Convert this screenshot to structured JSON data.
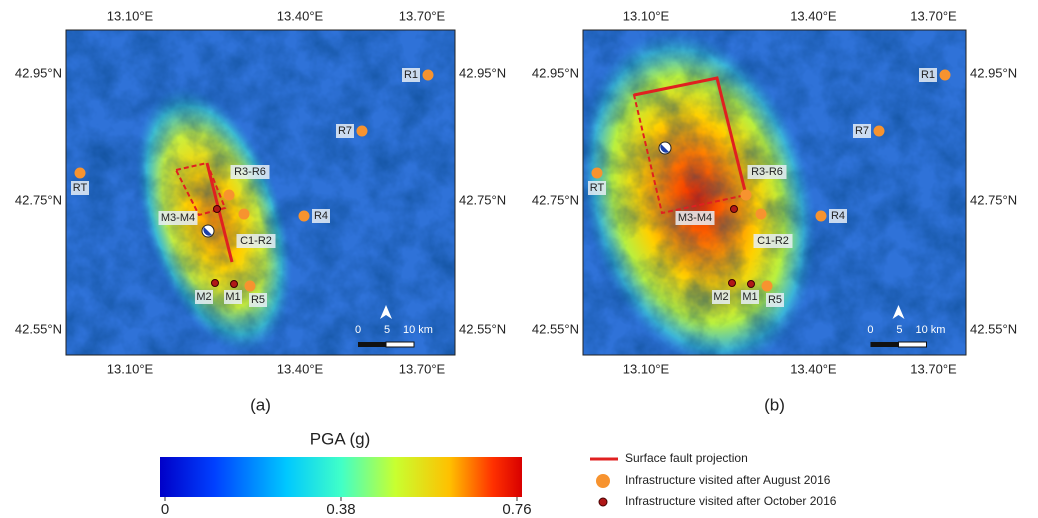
{
  "panels": [
    {
      "label": "(a)",
      "x_ticks": [
        "13.10°E",
        "13.40°E",
        "13.70°E"
      ],
      "y_ticks": [
        "42.95°N",
        "42.75°N",
        "42.55°N"
      ],
      "sites": [
        "R1",
        "R7",
        "RT",
        "R3-R6",
        "R4",
        "M3-M4",
        "C1-R2",
        "M2",
        "M1",
        "R5"
      ],
      "scale_labels": [
        "0",
        "5",
        "10 km"
      ]
    },
    {
      "label": "(b)",
      "x_ticks": [
        "13.10°E",
        "13.40°E",
        "13.70°E"
      ],
      "y_ticks": [
        "42.95°N",
        "42.75°N",
        "42.55°N"
      ],
      "sites": [
        "R1",
        "R7",
        "RT",
        "R3-R6",
        "R4",
        "M3-M4",
        "C1-R2",
        "M2",
        "M1",
        "R5"
      ],
      "scale_labels": [
        "0",
        "5",
        "10 km"
      ]
    }
  ],
  "colorbar": {
    "title": "PGA (g)",
    "lim": [
      0,
      0.76
    ],
    "ticks": [
      0,
      0.38,
      0.76
    ]
  },
  "legend": [
    "Surface fault projection",
    "Infrastructure visited after August 2016",
    "Infrastructure visited after October 2016"
  ]
}
